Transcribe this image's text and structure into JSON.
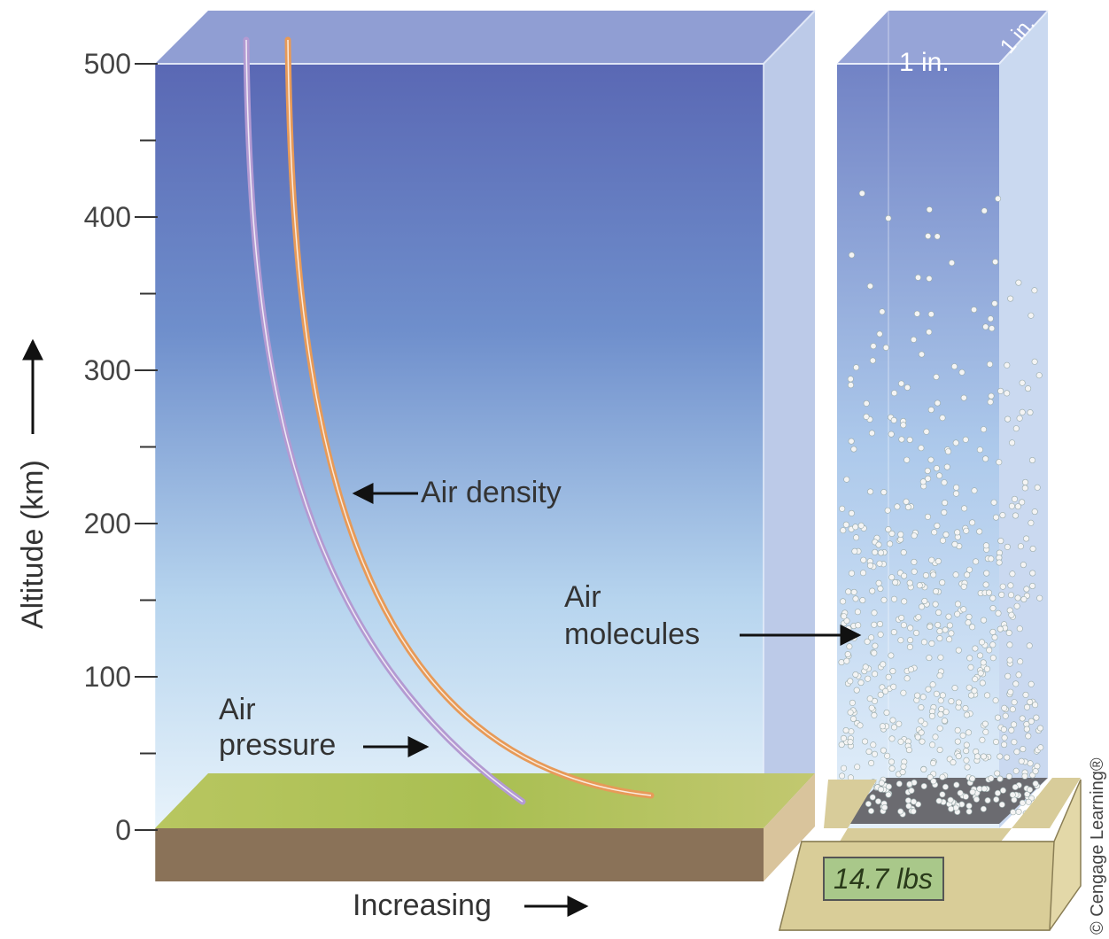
{
  "axis": {
    "label": "Altitude (km)",
    "ticks": [
      0,
      100,
      200,
      300,
      400,
      500
    ]
  },
  "density_label": "Air density",
  "pressure_label": [
    "Air",
    "pressure"
  ],
  "molecules_label": [
    "Air",
    "molecules"
  ],
  "x_label": "Increasing",
  "column": {
    "width": "1 in.",
    "depth": "1 in."
  },
  "scale_reading": "14.7 lbs",
  "credit": "© Cengage Learning®"
}
